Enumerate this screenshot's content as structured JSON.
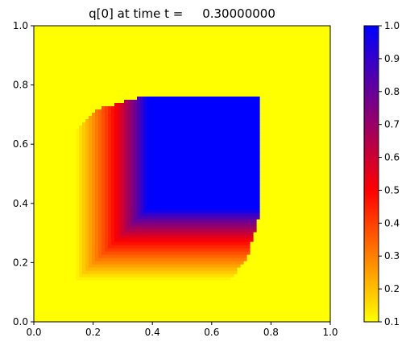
{
  "chart_data": {
    "type": "heatmap",
    "title": "q[0] at time t =     0.30000000",
    "xlabel": "",
    "ylabel": "",
    "xlim": [
      0.0,
      1.0
    ],
    "ylim": [
      0.0,
      1.0
    ],
    "x_ticks": [
      "0.0",
      "0.2",
      "0.4",
      "0.6",
      "0.8",
      "1.0"
    ],
    "y_ticks": [
      "0.0",
      "0.2",
      "0.4",
      "0.6",
      "0.8",
      "1.0"
    ],
    "x_tick_values": [
      0.0,
      0.2,
      0.4,
      0.6,
      0.8,
      1.0
    ],
    "y_tick_values": [
      0.0,
      0.2,
      0.4,
      0.6,
      0.8,
      1.0
    ],
    "grid": false,
    "colorbar": {
      "range": [
        0.1,
        1.0
      ],
      "ticks": [
        "0.1",
        "0.2",
        "0.3",
        "0.4",
        "0.5",
        "0.6",
        "0.7",
        "0.8",
        "0.9",
        "1.0"
      ],
      "tick_values": [
        0.1,
        0.2,
        0.3,
        0.4,
        0.5,
        0.6,
        0.7,
        0.8,
        0.9,
        1.0
      ],
      "colormap": [
        "#ffff00",
        "#ff0000",
        "#0000ff"
      ]
    },
    "field": {
      "background_value": 0.1,
      "plateau_value": 1.0,
      "plateau_region": {
        "x": [
          0.38,
          0.76
        ],
        "y": [
          0.38,
          0.765
        ]
      },
      "gradient_region": {
        "x": [
          0.14,
          0.38
        ],
        "y": [
          0.14,
          0.38
        ]
      },
      "outer_boundary": [
        [
          0.14,
          0.14
        ],
        [
          0.66,
          0.14
        ],
        [
          0.72,
          0.22
        ],
        [
          0.76,
          0.36
        ],
        [
          0.76,
          0.765
        ],
        [
          0.38,
          0.765
        ],
        [
          0.22,
          0.72
        ],
        [
          0.14,
          0.65
        ]
      ]
    }
  }
}
